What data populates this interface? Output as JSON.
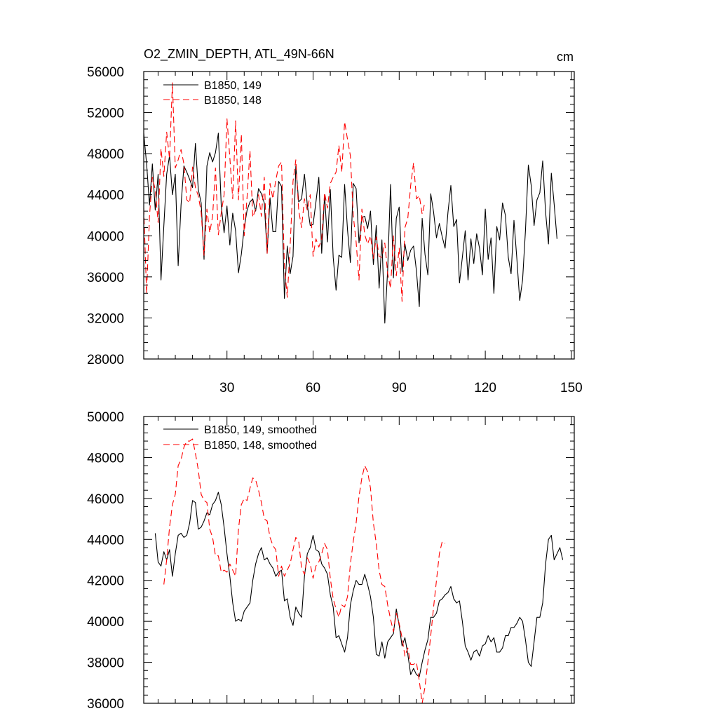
{
  "chart_data": [
    {
      "type": "line",
      "title": "O2_ZMIN_DEPTH, ATL_49N-66N",
      "units": "cm",
      "xlim": [
        1,
        151
      ],
      "ylim": [
        28000,
        56000
      ],
      "y_ticks": [
        28000,
        32000,
        36000,
        40000,
        44000,
        48000,
        52000,
        56000
      ],
      "y_tick_labels": [
        "28000",
        "32000",
        "36000",
        "40000",
        "44000",
        "48000",
        "52000",
        "56000"
      ],
      "x_ticks": [
        30,
        60,
        90,
        120,
        150
      ],
      "x_tick_labels": [
        "30",
        "60",
        "90",
        "120",
        "150"
      ],
      "legend_position": "top-left",
      "series": [
        {
          "name": "B1850, 149",
          "color": "#000000",
          "dashed": false,
          "x_start": 1,
          "values": [
            50000,
            47000,
            43000,
            47000,
            42500,
            46000,
            35700,
            41000,
            46000,
            47800,
            44000,
            46000,
            37100,
            43000,
            46800,
            46200,
            45500,
            44700,
            49000,
            44500,
            43200,
            37700,
            46800,
            48100,
            47200,
            48100,
            50000,
            43000,
            40300,
            42900,
            39100,
            42200,
            40500,
            36400,
            38200,
            40800,
            42500,
            43300,
            43600,
            42400,
            44600,
            44100,
            43200,
            38300,
            43700,
            40400,
            40400,
            45300,
            44800,
            33900,
            39000,
            36300,
            38000,
            46800,
            43300,
            43600,
            46000,
            43000,
            41000,
            41100,
            43300,
            45700,
            38300,
            44000,
            39400,
            44500,
            37900,
            34700,
            38100,
            37900,
            45000,
            40600,
            37400,
            45100,
            44600,
            39300,
            41800,
            41900,
            40700,
            42400,
            37200,
            41000,
            34900,
            39600,
            31500,
            36700,
            45000,
            35900,
            41700,
            42800,
            36500,
            39200,
            37600,
            38600,
            39000,
            36600,
            33100,
            41700,
            38200,
            36200,
            44100,
            42300,
            39800,
            41200,
            39900,
            38800,
            42300,
            44900,
            40900,
            41600,
            35400,
            37900,
            40500,
            35700,
            39700,
            37300,
            40200,
            38800,
            36200,
            42600,
            37700,
            39800,
            34400,
            40900,
            39600,
            43200,
            42000,
            37900,
            36300,
            41500,
            37800,
            33700,
            35700,
            40500,
            46900,
            44900,
            41000,
            43500,
            44200,
            47300,
            42300,
            39200,
            46100,
            43100,
            39700
          ]
        },
        {
          "name": "B1850, 148",
          "color": "#ff0000",
          "dashed": true,
          "x_start": 1,
          "values": [
            42700,
            34400,
            41900,
            45700,
            44500,
            41300,
            48500,
            45800,
            50100,
            47500,
            54900,
            46600,
            47400,
            48400,
            47000,
            43500,
            43200,
            46700,
            44700,
            43900,
            42300,
            38100,
            42600,
            40300,
            41900,
            46600,
            40100,
            42200,
            44000,
            51400,
            47600,
            43600,
            51200,
            43500,
            49900,
            40000,
            43800,
            48300,
            41800,
            42600,
            44000,
            41900,
            45700,
            38300,
            45100,
            43600,
            45400,
            46800,
            47200,
            37100,
            34000,
            39000,
            45300,
            47400,
            42500,
            40800,
            43600,
            42500,
            44000,
            38000,
            39700,
            38900,
            39700,
            44200,
            42700,
            45100,
            45700,
            46200,
            48800,
            46200,
            51100,
            49400,
            47800,
            42000,
            39400,
            35700,
            42600,
            40100,
            39200,
            40000,
            37800,
            39900,
            38000,
            37900,
            39300,
            36300,
            34900,
            40000,
            36100,
            38800,
            33600,
            40800,
            41700,
            44900,
            47100,
            43600,
            43900,
            42100,
            43300
          ]
        }
      ]
    },
    {
      "type": "line",
      "xlim": [
        1,
        151
      ],
      "ylim": [
        36000,
        50000
      ],
      "y_ticks": [
        36000,
        38000,
        40000,
        42000,
        44000,
        46000,
        48000,
        50000
      ],
      "y_tick_labels": [
        "36000",
        "38000",
        "40000",
        "42000",
        "44000",
        "46000",
        "48000",
        "50000"
      ],
      "x_ticks": [
        30,
        60,
        90,
        120,
        150
      ],
      "legend_position": "top-left",
      "series": [
        {
          "name": "B1850, 149, smoothed",
          "color": "#000000",
          "dashed": false,
          "x_start": 5,
          "values": [
            44300,
            42900,
            42700,
            43400,
            43000,
            43500,
            42200,
            43300,
            44200,
            44300,
            44100,
            44200,
            44800,
            45900,
            45800,
            44500,
            44600,
            44900,
            45300,
            45200,
            45700,
            45900,
            46300,
            45700,
            44600,
            43300,
            42200,
            40900,
            40000,
            40100,
            40000,
            40500,
            40700,
            40900,
            42000,
            42800,
            43300,
            43600,
            43000,
            43100,
            42800,
            42600,
            42200,
            42400,
            42500,
            41000,
            41100,
            40200,
            39800,
            40700,
            40400,
            40200,
            42200,
            43300,
            43600,
            44200,
            43500,
            43400,
            42800,
            42600,
            42300,
            41300,
            40700,
            39200,
            39300,
            38900,
            38500,
            39200,
            40800,
            41500,
            42000,
            41800,
            41800,
            42300,
            41800,
            41200,
            40200,
            38400,
            38300,
            39000,
            38200,
            39000,
            39200,
            39400,
            40600,
            39800,
            38800,
            39200,
            38400,
            37400,
            37700,
            37400,
            37300,
            38000,
            38600,
            39100,
            40200,
            40200,
            40400,
            41000,
            41100,
            41300,
            41400,
            41700,
            41100,
            40900,
            41000,
            40000,
            38800,
            38500,
            38100,
            38500,
            38600,
            38300,
            38800,
            38900,
            39300,
            39000,
            39200,
            38500,
            38500,
            38700,
            39300,
            39300,
            39700,
            39700,
            39900,
            40200,
            40000,
            39100,
            38000,
            37800,
            39000,
            40200,
            40200,
            40900,
            42800,
            44000,
            44200,
            43000,
            43300,
            43600,
            43000
          ]
        },
        {
          "name": "B1850, 148, smoothed",
          "color": "#ff0000",
          "dashed": true,
          "x_start": 8,
          "values": [
            41800,
            43000,
            44600,
            45700,
            46200,
            47600,
            47900,
            48500,
            48800,
            48800,
            48900,
            48200,
            47400,
            46200,
            45900,
            45800,
            44500,
            44100,
            43200,
            43200,
            42400,
            42500,
            42400,
            42800,
            42500,
            42200,
            44500,
            45700,
            46000,
            45900,
            46500,
            47000,
            46900,
            46400,
            45800,
            45000,
            44900,
            44100,
            43700,
            43500,
            42200,
            42700,
            42200,
            42500,
            42800,
            43500,
            44100,
            43900,
            42600,
            42300,
            43100,
            42800,
            42100,
            42700,
            42900,
            43300,
            43800,
            43500,
            42100,
            41100,
            40600,
            40200,
            40800,
            40700,
            41200,
            42800,
            43900,
            44800,
            46100,
            47000,
            47600,
            47300,
            46500,
            44800,
            43800,
            42500,
            41800,
            41700,
            40800,
            40100,
            39500,
            40400,
            39900,
            39200,
            38300,
            38700,
            37900,
            37900,
            38000,
            37100,
            36000,
            36800,
            38000,
            39300,
            40700,
            42000,
            43300,
            43900,
            43800
          ]
        }
      ]
    }
  ]
}
